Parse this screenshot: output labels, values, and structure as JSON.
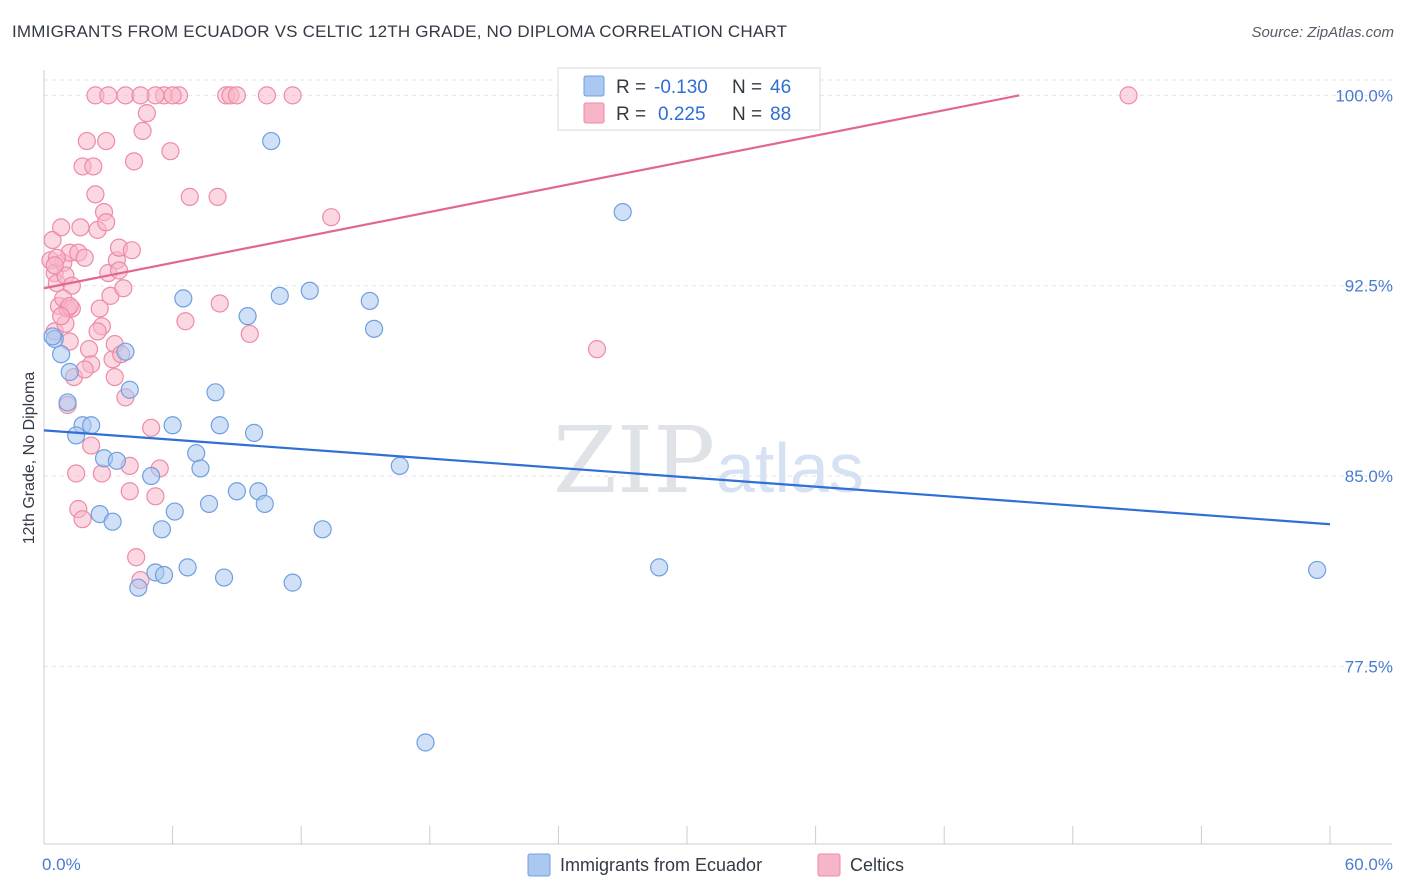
{
  "title": "IMMIGRANTS FROM ECUADOR VS CELTIC 12TH GRADE, NO DIPLOMA CORRELATION CHART",
  "source": "Source: ZipAtlas.com",
  "watermark": {
    "zip": "ZIP",
    "atlas": "atlas"
  },
  "colors": {
    "blue_fill": "#aac8f0",
    "blue_stroke": "#6f9fe0",
    "blue_line": "#2f6fd6",
    "pink_fill": "#f7b6c8",
    "pink_stroke": "#ee8aa8",
    "pink_line": "#e06890",
    "grid": "#e3e6ea",
    "axis_text": "#4a7bd0"
  },
  "legend_box": {
    "rows": [
      {
        "r_label": "R =",
        "r_value": "-0.130",
        "n_label": "N =",
        "n_value": "46"
      },
      {
        "r_label": "R =",
        "r_value": "0.225",
        "n_label": "N =",
        "n_value": "88"
      }
    ]
  },
  "chart_data": {
    "type": "scatter",
    "title": "IMMIGRANTS FROM ECUADOR VS CELTIC 12TH GRADE, NO DIPLOMA CORRELATION CHART",
    "xlabel": "",
    "ylabel": "12th Grade, No Diploma",
    "xlim": [
      0,
      60
    ],
    "ylim": [
      70.5,
      101
    ],
    "x_tick_labels": [
      {
        "value": 0,
        "label": "0.0%"
      },
      {
        "value": 60,
        "label": "60.0%"
      }
    ],
    "x_minor_ticks": [
      0,
      6,
      12,
      18,
      24,
      30,
      36,
      42,
      48,
      54,
      60
    ],
    "y_ticks": [
      {
        "value": 100,
        "label": "100.0%"
      },
      {
        "value": 92.5,
        "label": "92.5%"
      },
      {
        "value": 85,
        "label": "85.0%"
      },
      {
        "value": 77.5,
        "label": "77.5%"
      }
    ],
    "series": [
      {
        "name": "Immigrants from Ecuador",
        "color": "blue",
        "trend": {
          "x": [
            0,
            60
          ],
          "y": [
            86.8,
            83.1
          ]
        },
        "points": [
          [
            0.5,
            90.4
          ],
          [
            0.8,
            89.8
          ],
          [
            1.2,
            89.1
          ],
          [
            1.1,
            87.9
          ],
          [
            1.8,
            87.0
          ],
          [
            1.5,
            86.6
          ],
          [
            3.8,
            89.9
          ],
          [
            4.0,
            88.4
          ],
          [
            2.8,
            85.7
          ],
          [
            3.4,
            85.6
          ],
          [
            2.6,
            83.5
          ],
          [
            3.2,
            83.2
          ],
          [
            4.4,
            80.6
          ],
          [
            5.0,
            85.0
          ],
          [
            5.2,
            81.2
          ],
          [
            5.6,
            81.1
          ],
          [
            5.5,
            82.9
          ],
          [
            6.0,
            87.0
          ],
          [
            6.1,
            83.6
          ],
          [
            6.5,
            92.0
          ],
          [
            6.7,
            81.4
          ],
          [
            7.1,
            85.9
          ],
          [
            7.3,
            85.3
          ],
          [
            7.7,
            83.9
          ],
          [
            8.0,
            88.3
          ],
          [
            8.2,
            87.0
          ],
          [
            8.4,
            81.0
          ],
          [
            9.0,
            84.4
          ],
          [
            9.5,
            91.3
          ],
          [
            9.8,
            86.7
          ],
          [
            10.0,
            84.4
          ],
          [
            10.3,
            83.9
          ],
          [
            10.6,
            98.2
          ],
          [
            11.0,
            92.1
          ],
          [
            11.6,
            80.8
          ],
          [
            12.4,
            92.3
          ],
          [
            13.0,
            82.9
          ],
          [
            15.2,
            91.9
          ],
          [
            15.4,
            90.8
          ],
          [
            16.6,
            85.4
          ],
          [
            17.8,
            74.5
          ],
          [
            27.0,
            95.4
          ],
          [
            28.7,
            81.4
          ],
          [
            59.4,
            81.3
          ],
          [
            0.4,
            90.5
          ],
          [
            2.2,
            87.0
          ]
        ]
      },
      {
        "name": "Celtics",
        "color": "pink",
        "trend": {
          "x": [
            0,
            45.5
          ],
          "y": [
            92.4,
            100.0
          ]
        },
        "points": [
          [
            0.3,
            93.5
          ],
          [
            0.4,
            94.3
          ],
          [
            0.5,
            93.0
          ],
          [
            0.6,
            92.6
          ],
          [
            0.7,
            91.7
          ],
          [
            0.5,
            90.7
          ],
          [
            0.9,
            93.4
          ],
          [
            0.8,
            94.8
          ],
          [
            1.0,
            92.9
          ],
          [
            1.1,
            91.6
          ],
          [
            1.2,
            93.8
          ],
          [
            1.3,
            92.5
          ],
          [
            1.0,
            91.0
          ],
          [
            1.2,
            90.3
          ],
          [
            1.4,
            88.9
          ],
          [
            1.5,
            85.1
          ],
          [
            1.6,
            93.8
          ],
          [
            1.7,
            94.8
          ],
          [
            1.8,
            97.2
          ],
          [
            1.9,
            93.6
          ],
          [
            2.0,
            98.2
          ],
          [
            2.1,
            90.0
          ],
          [
            2.2,
            89.4
          ],
          [
            2.3,
            97.2
          ],
          [
            2.4,
            96.1
          ],
          [
            2.5,
            94.7
          ],
          [
            2.6,
            91.6
          ],
          [
            2.7,
            90.9
          ],
          [
            2.8,
            95.4
          ],
          [
            2.9,
            98.2
          ],
          [
            3.0,
            93.0
          ],
          [
            3.1,
            92.1
          ],
          [
            3.2,
            89.6
          ],
          [
            3.3,
            90.2
          ],
          [
            3.4,
            93.5
          ],
          [
            3.5,
            94.0
          ],
          [
            3.6,
            89.8
          ],
          [
            3.7,
            92.4
          ],
          [
            3.8,
            88.1
          ],
          [
            4.0,
            85.4
          ],
          [
            4.1,
            93.9
          ],
          [
            4.2,
            97.4
          ],
          [
            4.3,
            81.8
          ],
          [
            4.5,
            80.9
          ],
          [
            4.6,
            98.6
          ],
          [
            4.8,
            99.3
          ],
          [
            5.0,
            86.9
          ],
          [
            5.2,
            84.2
          ],
          [
            5.4,
            85.3
          ],
          [
            5.6,
            100.0
          ],
          [
            5.9,
            97.8
          ],
          [
            6.3,
            100.0
          ],
          [
            6.6,
            91.1
          ],
          [
            6.8,
            96.0
          ],
          [
            8.1,
            96.0
          ],
          [
            8.2,
            91.8
          ],
          [
            8.5,
            100.0
          ],
          [
            8.7,
            100.0
          ],
          [
            9.6,
            90.6
          ],
          [
            10.4,
            100.0
          ],
          [
            11.6,
            100.0
          ],
          [
            13.4,
            95.2
          ],
          [
            25.8,
            90.0
          ],
          [
            50.6,
            100.0
          ],
          [
            2.4,
            100.0
          ],
          [
            3.8,
            100.0
          ],
          [
            5.2,
            100.0
          ],
          [
            6.0,
            100.0
          ],
          [
            9.0,
            100.0
          ],
          [
            0.6,
            93.6
          ],
          [
            0.9,
            92.0
          ],
          [
            1.3,
            91.6
          ],
          [
            2.2,
            86.2
          ],
          [
            2.7,
            85.1
          ],
          [
            1.6,
            83.7
          ],
          [
            1.8,
            83.3
          ],
          [
            4.0,
            84.4
          ],
          [
            2.9,
            95.0
          ],
          [
            3.5,
            93.1
          ],
          [
            1.1,
            87.8
          ],
          [
            0.5,
            93.3
          ],
          [
            1.9,
            89.2
          ],
          [
            3.0,
            100.0
          ],
          [
            4.5,
            100.0
          ],
          [
            1.2,
            91.7
          ],
          [
            0.8,
            91.3
          ],
          [
            3.3,
            88.9
          ],
          [
            2.5,
            90.7
          ]
        ]
      }
    ],
    "legend": [
      {
        "label": "Immigrants from Ecuador",
        "color": "blue"
      },
      {
        "label": "Celtics",
        "color": "pink"
      }
    ]
  }
}
